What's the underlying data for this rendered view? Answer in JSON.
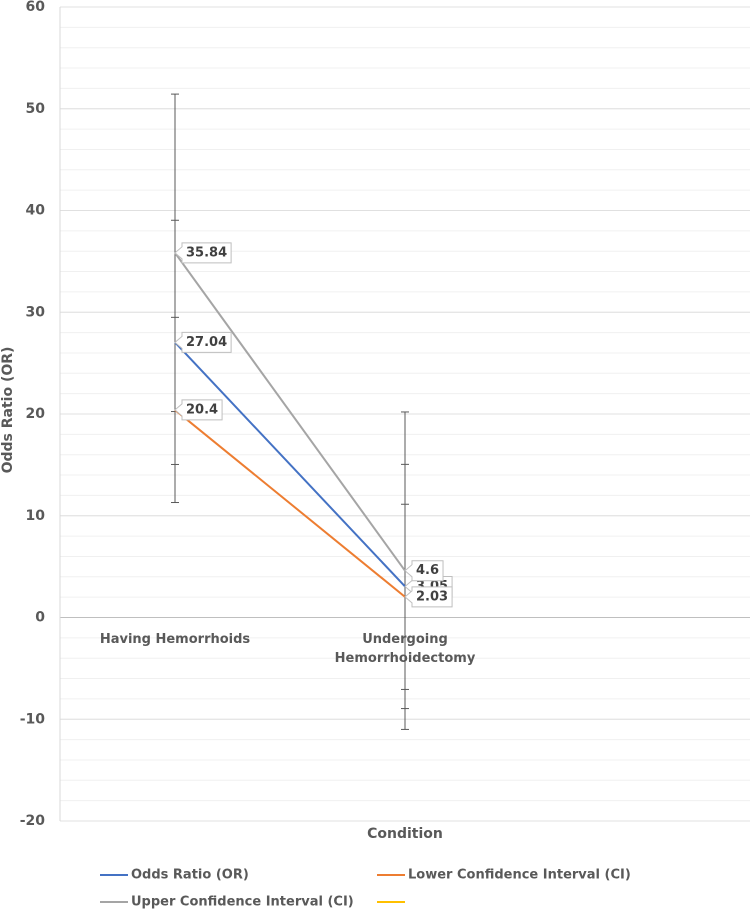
{
  "chart_data": {
    "type": "line",
    "categories": [
      "Having Hemorrhoids",
      "Undergoing Hemorrhoidectomy",
      null
    ],
    "series": [
      {
        "name": "Odds Ratio (OR)",
        "color": "#4472c4",
        "values": [
          27.04,
          3.05,
          null
        ],
        "errors": [
          12,
          12,
          null
        ]
      },
      {
        "name": "Lower Confidence Interval (CI)",
        "color": "#ed7d31",
        "values": [
          20.4,
          2.03,
          null
        ],
        "errors": [
          9.1,
          9.1,
          null
        ]
      },
      {
        "name": "Upper Confidence Interval (CI)",
        "color": "#a5a5a5",
        "values": [
          35.84,
          4.6,
          null
        ],
        "errors": [
          15.6,
          15.6,
          null
        ]
      },
      {
        "name": null,
        "color": "#ffc000",
        "values": [
          null,
          null,
          null
        ]
      }
    ],
    "x_label": "Condition",
    "y_label": "Odds Ratio (OR)",
    "ylim": [
      -20,
      60
    ],
    "yticks": [
      -20,
      -10,
      0,
      10,
      20,
      30,
      40,
      50,
      60
    ],
    "grid": true,
    "minor_grid_step": 2,
    "legend": "bottom",
    "data_labels": true
  }
}
